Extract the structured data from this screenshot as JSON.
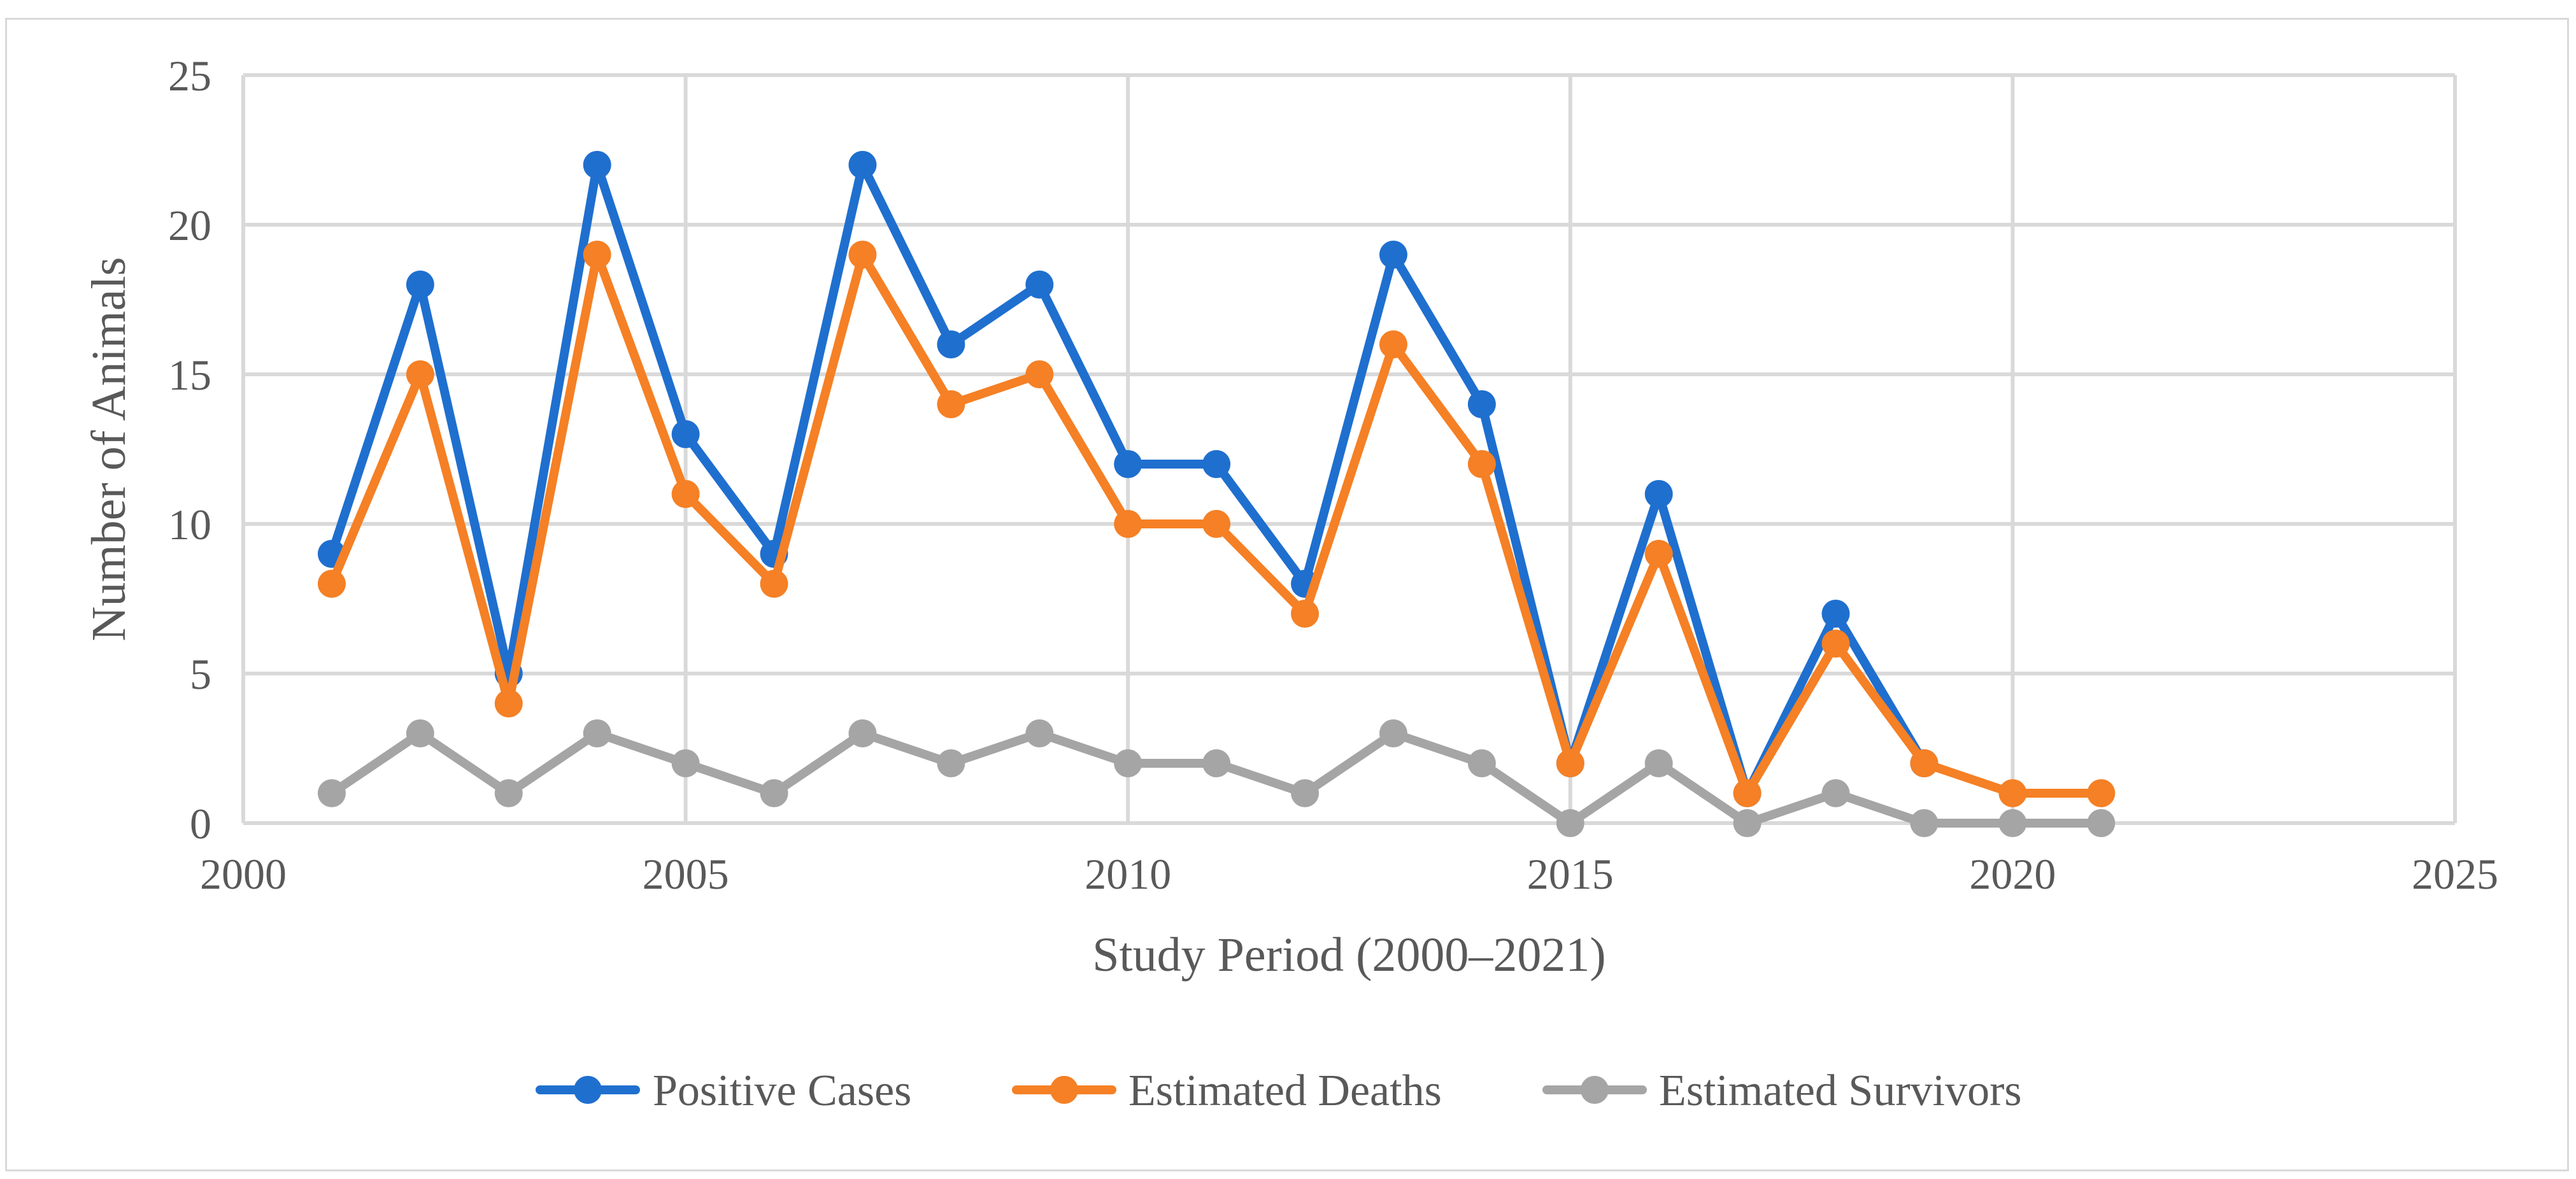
{
  "chart_data": {
    "type": "line",
    "title": "",
    "xlabel": "Study Period (2000–2021)",
    "ylabel": "Number of Animals",
    "xlim": [
      2000,
      2025
    ],
    "ylim": [
      0,
      25
    ],
    "xticks": [
      2000,
      2005,
      2010,
      2015,
      2020,
      2025
    ],
    "yticks": [
      0,
      5,
      10,
      15,
      20,
      25
    ],
    "grid": true,
    "legend_position": "bottom",
    "series": [
      {
        "name": "Positive Cases",
        "color": "#1f6fcf",
        "points": [
          [
            2001,
            9
          ],
          [
            2002,
            18
          ],
          [
            2003,
            5
          ],
          [
            2004,
            22
          ],
          [
            2005,
            13
          ],
          [
            2006,
            9
          ],
          [
            2007,
            22
          ],
          [
            2008,
            16
          ],
          [
            2009,
            18
          ],
          [
            2010,
            12
          ],
          [
            2011,
            12
          ],
          [
            2012,
            8
          ],
          [
            2013,
            19
          ],
          [
            2014,
            14
          ],
          [
            2015,
            2
          ],
          [
            2016,
            11
          ],
          [
            2017,
            1
          ],
          [
            2018,
            7
          ],
          [
            2019,
            2
          ]
        ]
      },
      {
        "name": "Estimated Deaths",
        "color": "#f58025",
        "points": [
          [
            2001,
            8
          ],
          [
            2002,
            15
          ],
          [
            2003,
            4
          ],
          [
            2004,
            19
          ],
          [
            2005,
            11
          ],
          [
            2006,
            8
          ],
          [
            2007,
            19
          ],
          [
            2008,
            14
          ],
          [
            2009,
            15
          ],
          [
            2010,
            10
          ],
          [
            2011,
            10
          ],
          [
            2012,
            7
          ],
          [
            2013,
            16
          ],
          [
            2014,
            12
          ],
          [
            2015,
            2
          ],
          [
            2016,
            9
          ],
          [
            2017,
            1
          ],
          [
            2018,
            6
          ],
          [
            2019,
            2
          ],
          [
            2020,
            1
          ],
          [
            2021,
            1
          ]
        ]
      },
      {
        "name": "Estimated Survivors",
        "color": "#a5a5a5",
        "points": [
          [
            2001,
            1
          ],
          [
            2002,
            3
          ],
          [
            2003,
            1
          ],
          [
            2004,
            3
          ],
          [
            2005,
            2
          ],
          [
            2006,
            1
          ],
          [
            2007,
            3
          ],
          [
            2008,
            2
          ],
          [
            2009,
            3
          ],
          [
            2010,
            2
          ],
          [
            2011,
            2
          ],
          [
            2012,
            1
          ],
          [
            2013,
            3
          ],
          [
            2014,
            2
          ],
          [
            2015,
            0
          ],
          [
            2016,
            2
          ],
          [
            2017,
            0
          ],
          [
            2018,
            1
          ],
          [
            2019,
            0
          ],
          [
            2020,
            0
          ],
          [
            2021,
            0
          ]
        ]
      }
    ]
  }
}
